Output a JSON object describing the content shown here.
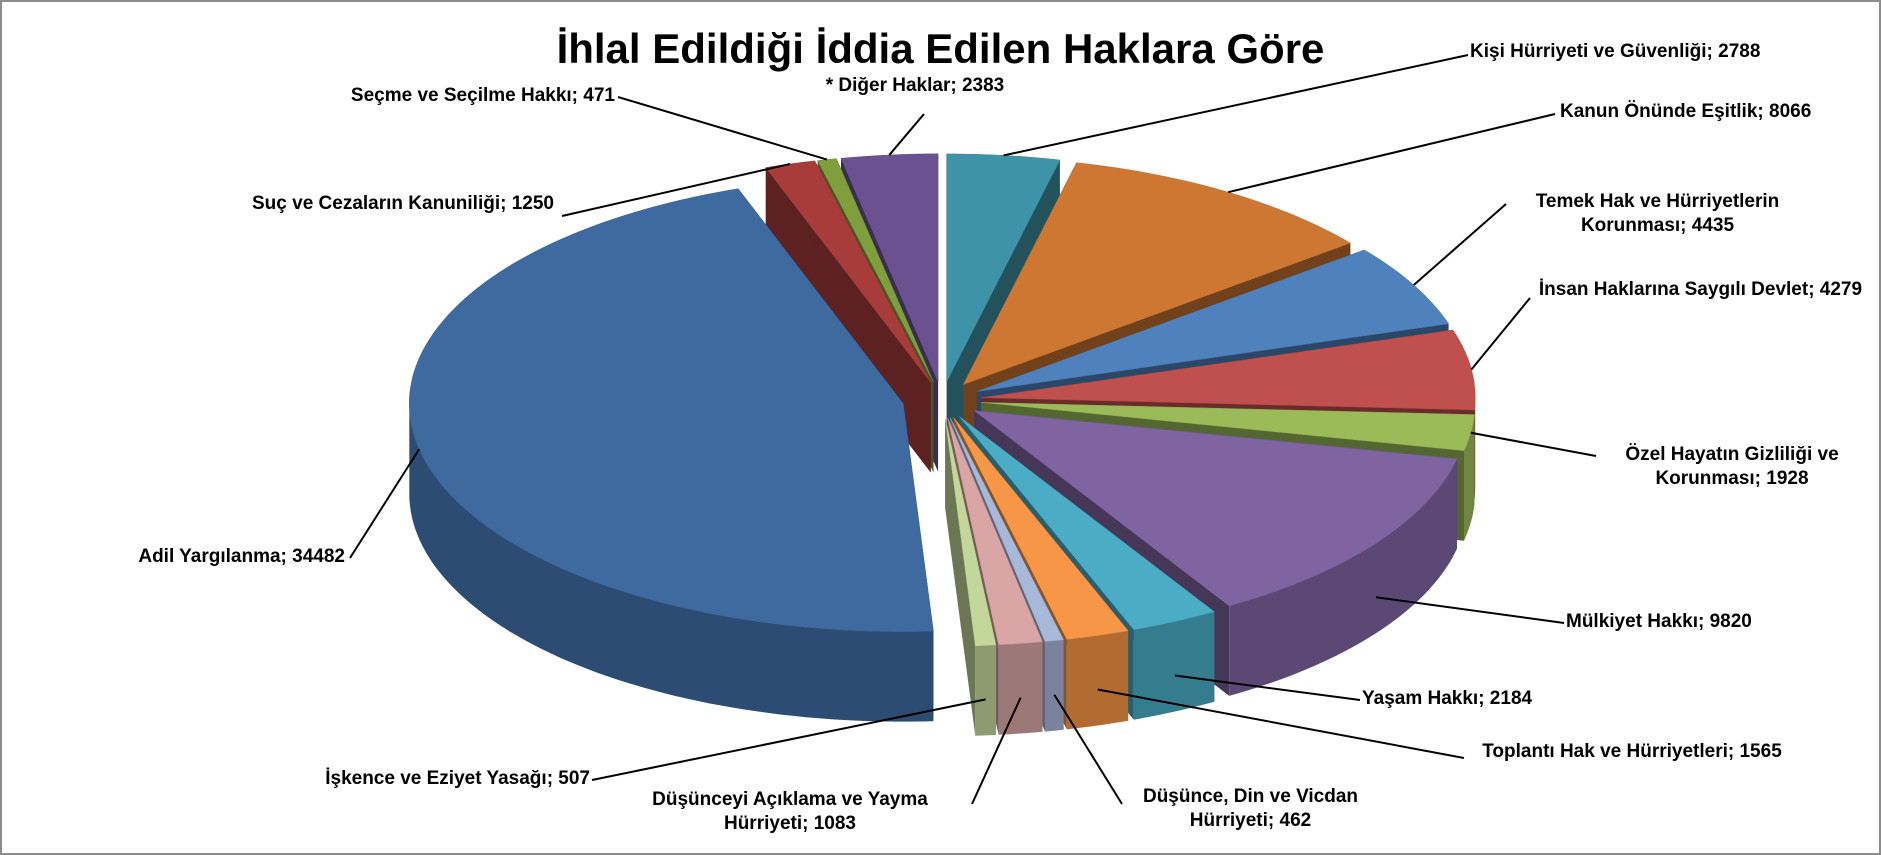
{
  "chart_data": {
    "type": "pie3d",
    "title": "İhlal Edildiği İddia Edilen Haklara Göre",
    "values": [
      2788,
      8066,
      4435,
      4279,
      1928,
      9820,
      2184,
      1565,
      462,
      1083,
      507,
      34482,
      1250,
      471,
      2383
    ],
    "value_labels": [
      "Kişi Hürriyeti ve Güvenliği; 2788",
      "Kanun Önünde Eşitlik; 8066",
      "Temek Hak ve Hürriyetlerin Korunması; 4435",
      "İnsan Haklarına Saygılı Devlet; 4279",
      "Özel Hayatın Gizliliği ve Korunması; 1928",
      "Mülkiyet Hakkı; 9820",
      "Yaşam Hakkı; 2184",
      "Toplantı Hak ve Hürriyetleri; 1565",
      "Düşünce, Din ve Vicdan Hürriyeti; 462",
      "Düşünceyi Açıklama ve Yayma Hürriyeti; 1083",
      "İşkence ve Eziyet Yasağı; 507",
      "Adil Yargılanma; 34482",
      "Suç ve Cezaların Kanuniliği; 1250",
      "Seçme ve Seçilme Hakkı; 471",
      "* Diğer Haklar; 2383"
    ],
    "colors": [
      "#3f93a8",
      "#cd7733",
      "#4f81bd",
      "#c0504d",
      "#9bbb59",
      "#8064a2",
      "#4bacc6",
      "#f79646",
      "#a8b8d8",
      "#d9a6a5",
      "#c4d79b",
      "#3e6aa0",
      "#a83c3a",
      "#7f9f3e",
      "#6b5190"
    ]
  }
}
